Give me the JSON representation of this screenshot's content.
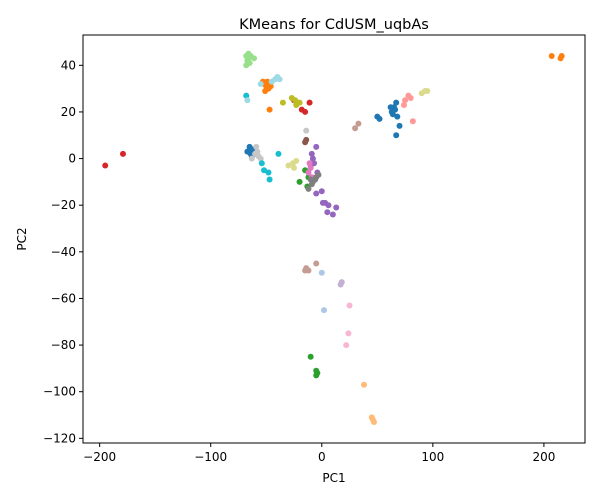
{
  "chart_data": {
    "type": "scatter",
    "title": "KMeans for CdUSM_uqbAs",
    "xlabel": "PC1",
    "ylabel": "PC2",
    "xlim": [
      -215,
      237
    ],
    "ylim": [
      -122,
      53
    ],
    "xticks": [
      -200,
      -100,
      0,
      100,
      200
    ],
    "yticks": [
      40,
      20,
      0,
      -20,
      -40,
      -60,
      -80,
      -100,
      -120
    ],
    "grid": false,
    "legend": "none",
    "series": [
      {
        "color": "#1f77b4",
        "points": [
          [
            -66,
            3
          ],
          [
            -64,
            2
          ],
          [
            -62,
            3
          ],
          [
            -65,
            5
          ],
          [
            -63,
            1
          ],
          [
            -60,
            2
          ],
          [
            -67,
            3
          ],
          [
            -61,
            4
          ],
          [
            63,
            20
          ],
          [
            65,
            22
          ],
          [
            67,
            24
          ],
          [
            64,
            19
          ],
          [
            66,
            21
          ],
          [
            62,
            22
          ],
          [
            68,
            18
          ],
          [
            70,
            14
          ],
          [
            67,
            10
          ],
          [
            50,
            18
          ],
          [
            52,
            17
          ]
        ]
      },
      {
        "color": "#aec7e8",
        "points": [
          [
            0,
            -49
          ],
          [
            2,
            -65
          ]
        ]
      },
      {
        "color": "#ff7f0e",
        "points": [
          [
            -50,
            31
          ],
          [
            -48,
            30
          ],
          [
            -52,
            32
          ],
          [
            -46,
            31
          ],
          [
            -53,
            33
          ],
          [
            -49,
            33
          ],
          [
            -51,
            29
          ],
          [
            -47,
            21
          ],
          [
            207,
            44
          ],
          [
            215,
            43
          ],
          [
            216,
            44
          ]
        ]
      },
      {
        "color": "#ffbb78",
        "points": [
          [
            45,
            -111
          ],
          [
            46,
            -112
          ],
          [
            47,
            -113
          ],
          [
            38,
            -97
          ]
        ]
      },
      {
        "color": "#2ca02c",
        "points": [
          [
            -5,
            -91
          ],
          [
            -4,
            -92
          ],
          [
            -5,
            -93
          ],
          [
            -10,
            -85
          ],
          [
            -15,
            -5
          ],
          [
            -12,
            -8
          ],
          [
            -20,
            -10
          ],
          [
            -13,
            -12
          ]
        ]
      },
      {
        "color": "#98df8a",
        "points": [
          [
            -68,
            44
          ],
          [
            -66,
            43
          ],
          [
            -67,
            42
          ],
          [
            -65,
            41
          ],
          [
            -64,
            44
          ],
          [
            -68,
            40
          ],
          [
            -61,
            43
          ],
          [
            -66,
            45
          ]
        ]
      },
      {
        "color": "#d62728",
        "points": [
          [
            -195,
            -3
          ],
          [
            -179,
            2
          ],
          [
            -18,
            21
          ],
          [
            -15,
            20
          ],
          [
            -11,
            24
          ],
          [
            -25,
            25
          ]
        ]
      },
      {
        "color": "#ff9896",
        "points": [
          [
            75,
            25
          ],
          [
            78,
            27
          ],
          [
            80,
            26
          ],
          [
            74,
            23
          ],
          [
            82,
            16
          ]
        ]
      },
      {
        "color": "#9467bd",
        "points": [
          [
            -8,
            0
          ],
          [
            -9,
            2
          ],
          [
            -7,
            -2
          ],
          [
            -4,
            -6
          ],
          [
            -10,
            -3
          ],
          [
            -5,
            5
          ],
          [
            -6,
            -9
          ],
          [
            0,
            -14
          ],
          [
            1,
            -19
          ],
          [
            3,
            -19
          ],
          [
            6,
            -20
          ],
          [
            13,
            -21
          ],
          [
            5,
            -23
          ],
          [
            10,
            -24
          ],
          [
            -5,
            -15
          ]
        ]
      },
      {
        "color": "#c5b0d5",
        "points": [
          [
            17,
            -54
          ],
          [
            18,
            -53
          ]
        ]
      },
      {
        "color": "#8c564b",
        "points": [
          [
            -15,
            7
          ],
          [
            -14,
            8
          ]
        ]
      },
      {
        "color": "#c49c94",
        "points": [
          [
            -14,
            -47
          ],
          [
            -12,
            -48
          ],
          [
            -15,
            -48
          ],
          [
            -5,
            -45
          ],
          [
            30,
            13
          ],
          [
            33,
            15
          ]
        ]
      },
      {
        "color": "#e377c2",
        "points": [
          [
            -12,
            -6
          ],
          [
            -9,
            -8
          ],
          [
            -10,
            -4
          ],
          [
            -11,
            -2
          ]
        ]
      },
      {
        "color": "#f7b6d2",
        "points": [
          [
            25,
            -63
          ],
          [
            24,
            -75
          ],
          [
            22,
            -80
          ]
        ]
      },
      {
        "color": "#7f7f7f",
        "points": [
          [
            -10,
            -9
          ],
          [
            -8,
            -10
          ],
          [
            -6,
            -9
          ],
          [
            -5,
            -8
          ],
          [
            -12,
            -13
          ],
          [
            -9,
            -11
          ],
          [
            -3,
            -7
          ]
        ]
      },
      {
        "color": "#c7c7c7",
        "points": [
          [
            -60,
            2
          ],
          [
            -58,
            3
          ],
          [
            -59,
            5
          ],
          [
            -57,
            1
          ],
          [
            -55,
            0
          ],
          [
            -14,
            12
          ],
          [
            -63,
            0
          ]
        ]
      },
      {
        "color": "#bcbd22",
        "points": [
          [
            -24,
            25
          ],
          [
            -22,
            24
          ],
          [
            -27,
            26
          ],
          [
            -23,
            23
          ],
          [
            -20,
            24
          ],
          [
            -35,
            24
          ]
        ]
      },
      {
        "color": "#dbdb8d",
        "points": [
          [
            -30,
            -3
          ],
          [
            -26,
            -2
          ],
          [
            -23,
            -1
          ],
          [
            -25,
            -4
          ],
          [
            90,
            28
          ],
          [
            93,
            29
          ],
          [
            95,
            29
          ]
        ]
      },
      {
        "color": "#17becf",
        "points": [
          [
            -54,
            -2
          ],
          [
            -52,
            -5
          ],
          [
            -48,
            -6
          ],
          [
            -47,
            -9
          ],
          [
            -39,
            2
          ],
          [
            -68,
            27
          ]
        ]
      },
      {
        "color": "#9edae5",
        "points": [
          [
            -45,
            33
          ],
          [
            -42,
            34
          ],
          [
            -40,
            35
          ],
          [
            -38,
            34
          ],
          [
            -55,
            32
          ],
          [
            -67,
            25
          ]
        ]
      }
    ]
  }
}
